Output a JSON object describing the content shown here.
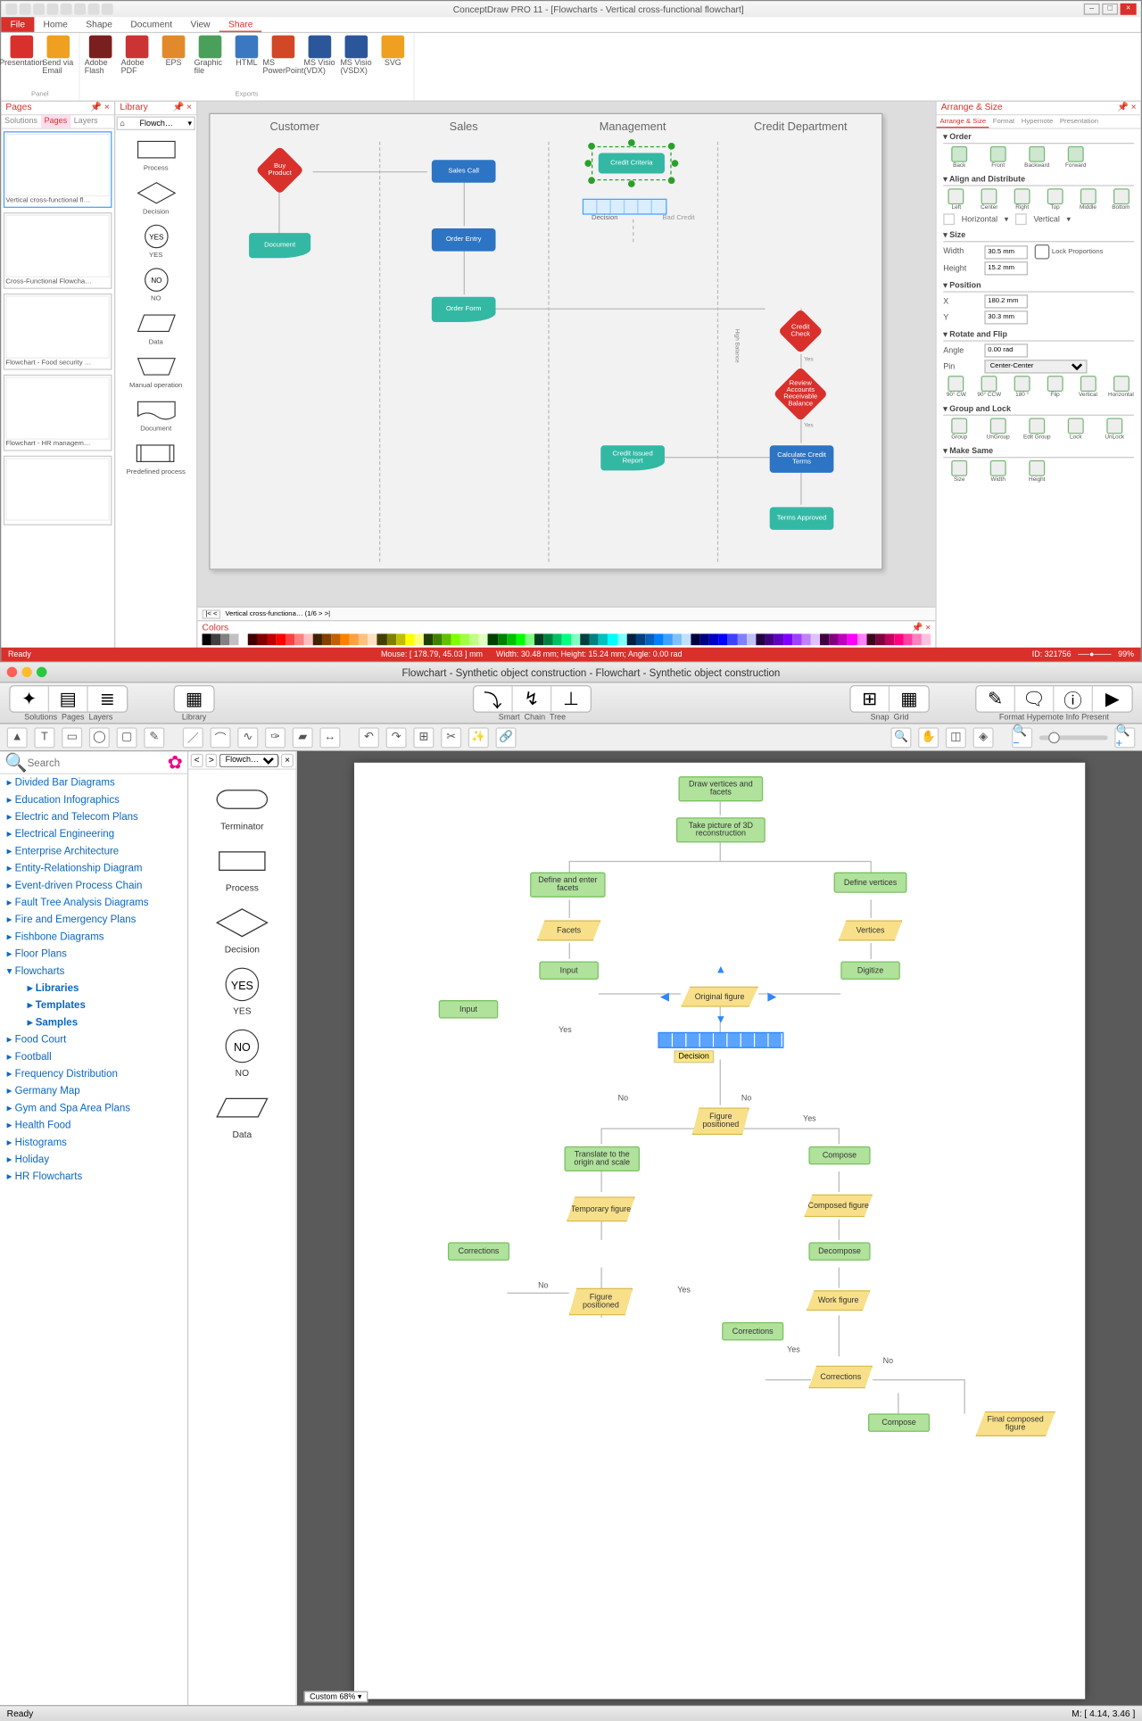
{
  "app1": {
    "title": "ConceptDraw PRO 11 - [Flowcharts - Vertical cross-functional flowchart]",
    "menu_tabs": [
      "File",
      "Home",
      "Shape",
      "Document",
      "View",
      "Share"
    ],
    "ribbon": {
      "panel_lbl": "Panel",
      "exports_lbl": "Exports",
      "presentation": "Presentation",
      "send_email": "Send via Email",
      "adobe_flash": "Adobe Flash",
      "adobe_pdf": "Adobe PDF",
      "eps": "EPS",
      "graphic": "Graphic file",
      "html": "HTML",
      "ppt": "MS PowerPoint",
      "visio_vdx": "MS Visio (VDX)",
      "visio_vsdx": "MS Visio (VSDX)",
      "svg": "SVG"
    },
    "pages": {
      "header": "Pages",
      "subtabs": [
        "Solutions",
        "Pages",
        "Layers"
      ],
      "thumbs": [
        "Vertical cross-functional fl…",
        "Cross-Functional Flowcha…",
        "Flowchart - Food security …",
        "Flowchart - HR managem…",
        ""
      ]
    },
    "library": {
      "header": "Library",
      "dropdown": "Flowch…",
      "shapes": [
        "Process",
        "Decision",
        "YES",
        "NO",
        "Data",
        "Manual operation",
        "Document",
        "Predefined process"
      ]
    },
    "lanes": [
      "Customer",
      "Sales",
      "Management",
      "Credit Department"
    ],
    "nodes": {
      "buy": "Buy Product",
      "document": "Document",
      "salescall": "Sales Call",
      "orderentry": "Order Entry",
      "orderform": "Order Form",
      "criteria": "Credit Criteria",
      "decision": "Decision",
      "badcredit": "Bad Credit",
      "creditcheck": "Credit Check",
      "review": "Review Accounts Receivable Balance",
      "calc": "Calculate Credit Terms",
      "terms": "Terms Approved",
      "issued": "Credit Issued Report",
      "yes1": "Yes",
      "yes2": "Yes",
      "highbal": "High Balance"
    },
    "tabstrip": "Vertical cross-functiona…   (1/6   >   >|",
    "colors_lbl": "Colors",
    "rightpanel": {
      "header": "Arrange & Size",
      "tabs": [
        "Arrange & Size",
        "Format",
        "Hypernote",
        "Presentation"
      ],
      "sections": {
        "order": "Order",
        "align": "Align and Distribute",
        "size": "Size",
        "position": "Position",
        "rotate": "Rotate and Flip",
        "group": "Group and Lock",
        "make": "Make Same"
      },
      "order_btns": [
        "Back",
        "Front",
        "Backward",
        "Forward"
      ],
      "align_btns": [
        "Left",
        "Center",
        "Right",
        "Top",
        "Middle",
        "Bottom"
      ],
      "align_h": "Horizontal",
      "align_v": "Vertical",
      "width_lbl": "Width",
      "width_val": "30.5 mm",
      "height_lbl": "Height",
      "height_val": "15.2 mm",
      "lock_prop": "Lock Proportions",
      "x_lbl": "X",
      "x_val": "180.2 mm",
      "y_lbl": "Y",
      "y_val": "30.3 mm",
      "angle_lbl": "Angle",
      "angle_val": "0.00 rad",
      "pin_lbl": "Pin",
      "pin_val": "Center-Center",
      "rotate_btns": [
        "90° CW",
        "90° CCW",
        "180 °",
        "Flip",
        "Vertical",
        "Horizontal"
      ],
      "group_btns": [
        "Group",
        "UnGroup",
        "Edit Group",
        "Lock",
        "UnLock"
      ],
      "make_btns": [
        "Size",
        "Width",
        "Height"
      ]
    },
    "status": {
      "ready": "Ready",
      "mouse": "Mouse: [ 178.79, 45.03 ] mm",
      "dims": "Width: 30.48 mm;  Height: 15.24 mm;  Angle: 0.00 rad",
      "id": "ID: 321756",
      "zoom": "99%"
    },
    "color_palette": [
      "#000000",
      "#404040",
      "#808080",
      "#c0c0c0",
      "#ffffff",
      "#400000",
      "#800000",
      "#c00000",
      "#ff0000",
      "#ff4040",
      "#ff8080",
      "#ffc0c0",
      "#402000",
      "#804000",
      "#c06000",
      "#ff8000",
      "#ffa040",
      "#ffc080",
      "#ffe0c0",
      "#404000",
      "#808000",
      "#c0c000",
      "#ffff00",
      "#ffff80",
      "#204000",
      "#408000",
      "#60c000",
      "#80ff00",
      "#a0ff40",
      "#c0ff80",
      "#e0ffc0",
      "#004000",
      "#008000",
      "#00c000",
      "#00ff00",
      "#80ff80",
      "#004020",
      "#008040",
      "#00c060",
      "#00ff80",
      "#80ffc0",
      "#004040",
      "#008080",
      "#00c0c0",
      "#00ffff",
      "#80ffff",
      "#002040",
      "#004080",
      "#0060c0",
      "#0080ff",
      "#40a0ff",
      "#80c0ff",
      "#c0e0ff",
      "#000040",
      "#000080",
      "#0000c0",
      "#0000ff",
      "#4040ff",
      "#8080ff",
      "#c0c0ff",
      "#200040",
      "#400080",
      "#6000c0",
      "#8000ff",
      "#a040ff",
      "#c080ff",
      "#e0c0ff",
      "#400040",
      "#800080",
      "#c000c0",
      "#ff00ff",
      "#ff80ff",
      "#400020",
      "#800040",
      "#c00060",
      "#ff0080",
      "#ff40a0",
      "#ff80c0",
      "#ffc0e0"
    ]
  },
  "app2": {
    "title": "Flowchart - Synthetic object construction - Flowchart - Synthetic object construction",
    "toolbar": {
      "solutions": "Solutions",
      "pages": "Pages",
      "layers": "Layers",
      "library": "Library",
      "smart": "Smart",
      "chain": "Chain",
      "tree": "Tree",
      "snap": "Snap",
      "grid": "Grid",
      "format": "Format",
      "hypernote": "Hypernote",
      "info": "Info",
      "present": "Present"
    },
    "search_placeholder": "Search",
    "tree": [
      "Divided Bar Diagrams",
      "Education Infographics",
      "Electric and Telecom Plans",
      "Electrical Engineering",
      "Enterprise Architecture",
      "Entity-Relationship Diagram",
      "Event-driven Process Chain",
      "Fault Tree Analysis Diagrams",
      "Fire and Emergency Plans",
      "Fishbone Diagrams",
      "Floor Plans"
    ],
    "flowcharts_lbl": "Flowcharts",
    "flowcharts_children": [
      "Libraries",
      "Templates",
      "Samples"
    ],
    "tree2": [
      "Food Court",
      "Football",
      "Frequency Distribution",
      "Germany Map",
      "Gym and Spa Area Plans",
      "Health Food",
      "Histograms",
      "Holiday",
      "HR Flowcharts"
    ],
    "lib_dropdown": "Flowch…",
    "shapes": [
      "Terminator",
      "Process",
      "Decision",
      "YES",
      "NO",
      "Data"
    ],
    "nodes": {
      "draw": "Draw vertices and facets",
      "pic": "Take picture of 3D reconstruction",
      "deffacets": "Define and enter facets",
      "defverts": "Define vertices",
      "facets": "Facets",
      "vertices": "Vertices",
      "inputL": "Input",
      "inputR": "Digitize",
      "input2": "Input",
      "orig": "Original figure",
      "decision": "Decision",
      "figpos1": "Figure positioned",
      "translate": "Translate to the origin and scale",
      "temp": "Temporary figure",
      "corrL": "Corrections",
      "figpos2": "Figure positioned",
      "compose1": "Compose",
      "compfig": "Composed figure",
      "decompose": "Decompose",
      "workfig": "Work figure",
      "corrR": "Corrections",
      "corrY": "Corrections",
      "compose2": "Compose",
      "final": "Final composed figure",
      "no1": "No",
      "no2": "No",
      "no3": "No",
      "yes1": "Yes",
      "yes2": "Yes",
      "yes3": "Yes",
      "yes4": "Yes"
    },
    "zoom": "Custom 68%",
    "status_ready": "Ready",
    "status_mouse": "M: [ 4.14, 3.46 ]"
  }
}
